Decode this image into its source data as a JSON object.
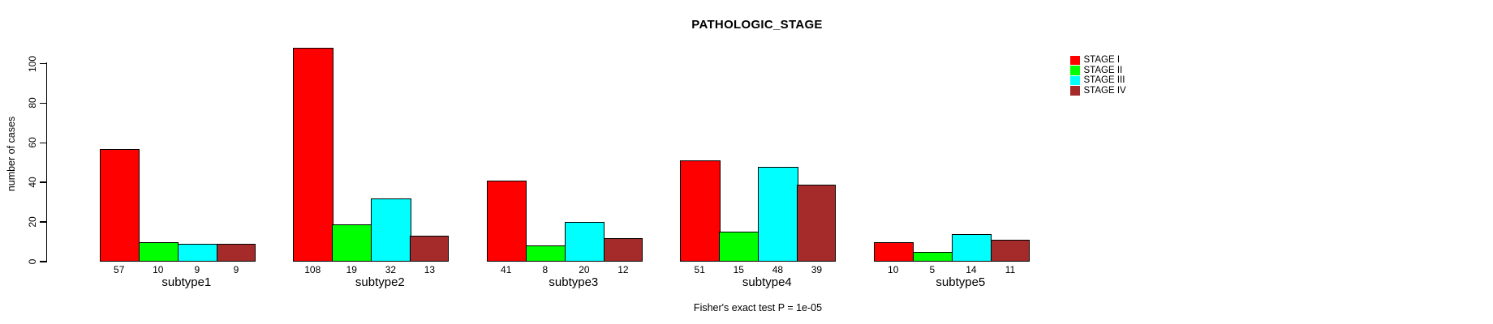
{
  "title": "PATHOLOGIC_STAGE",
  "footer": "Fisher's exact test P = 1e-05",
  "y_axis": {
    "label": "number of cases"
  },
  "legend": {
    "items": [
      {
        "label": "STAGE I",
        "color": "#FF0000"
      },
      {
        "label": "STAGE II",
        "color": "#00FF00"
      },
      {
        "label": "STAGE III",
        "color": "#00FFFF"
      },
      {
        "label": "STAGE IV",
        "color": "#A52A2A"
      }
    ]
  },
  "chart_data": {
    "type": "bar",
    "title": "PATHOLOGIC_STAGE",
    "categories": [
      "subtype1",
      "subtype2",
      "subtype3",
      "subtype4",
      "subtype5"
    ],
    "series": [
      {
        "name": "STAGE I",
        "color": "#FF0000",
        "values": [
          57,
          108,
          41,
          51,
          10
        ]
      },
      {
        "name": "STAGE II",
        "color": "#00FF00",
        "values": [
          10,
          19,
          8,
          15,
          5
        ]
      },
      {
        "name": "STAGE III",
        "color": "#00FFFF",
        "values": [
          9,
          32,
          20,
          48,
          14
        ]
      },
      {
        "name": "STAGE IV",
        "color": "#A52A2A",
        "values": [
          9,
          13,
          12,
          39,
          11
        ]
      }
    ],
    "xlabel": "",
    "ylabel": "number of cases",
    "ylim": [
      0,
      110
    ],
    "yticks": [
      0,
      20,
      40,
      60,
      80,
      100
    ],
    "bar_value_labels": true,
    "grid": false,
    "legend_position": "top-right",
    "annotation": "Fisher's exact test P = 1e-05"
  }
}
